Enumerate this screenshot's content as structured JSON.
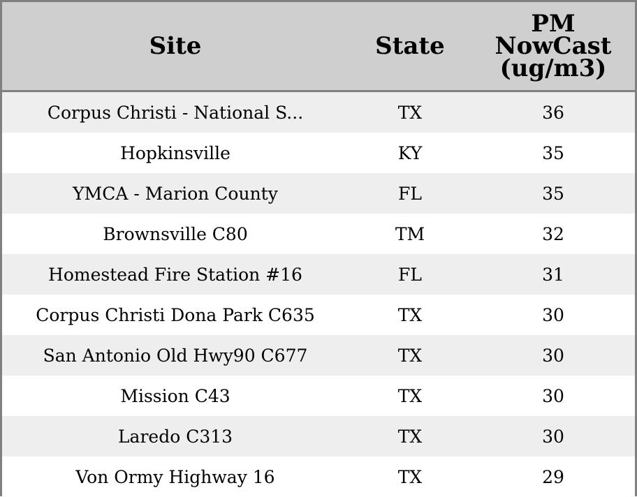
{
  "chart_data": {
    "type": "table",
    "columns": [
      "Site",
      "State",
      "PM NowCast (ug/m3)"
    ],
    "header_lines": {
      "pm": [
        "PM",
        "NowCast",
        "(ug/m3)"
      ]
    },
    "rows": [
      {
        "site": "Corpus Christi - National S...",
        "state": "TX",
        "pm": "36"
      },
      {
        "site": "Hopkinsville",
        "state": "KY",
        "pm": "35"
      },
      {
        "site": "YMCA - Marion County",
        "state": "FL",
        "pm": "35"
      },
      {
        "site": "Brownsville C80",
        "state": "TM",
        "pm": "32"
      },
      {
        "site": "Homestead Fire Station #16",
        "state": "FL",
        "pm": "31"
      },
      {
        "site": "Corpus Christi Dona Park C635",
        "state": "TX",
        "pm": "30"
      },
      {
        "site": "San Antonio Old Hwy90 C677",
        "state": "TX",
        "pm": "30"
      },
      {
        "site": "Mission C43",
        "state": "TX",
        "pm": "30"
      },
      {
        "site": "Laredo C313",
        "state": "TX",
        "pm": "30"
      },
      {
        "site": "Von Ormy Highway 16",
        "state": "TX",
        "pm": "29"
      }
    ]
  },
  "colors": {
    "header_background": "#cfcfcf",
    "stripe_background": "#eeeeee",
    "border": "#808080"
  }
}
